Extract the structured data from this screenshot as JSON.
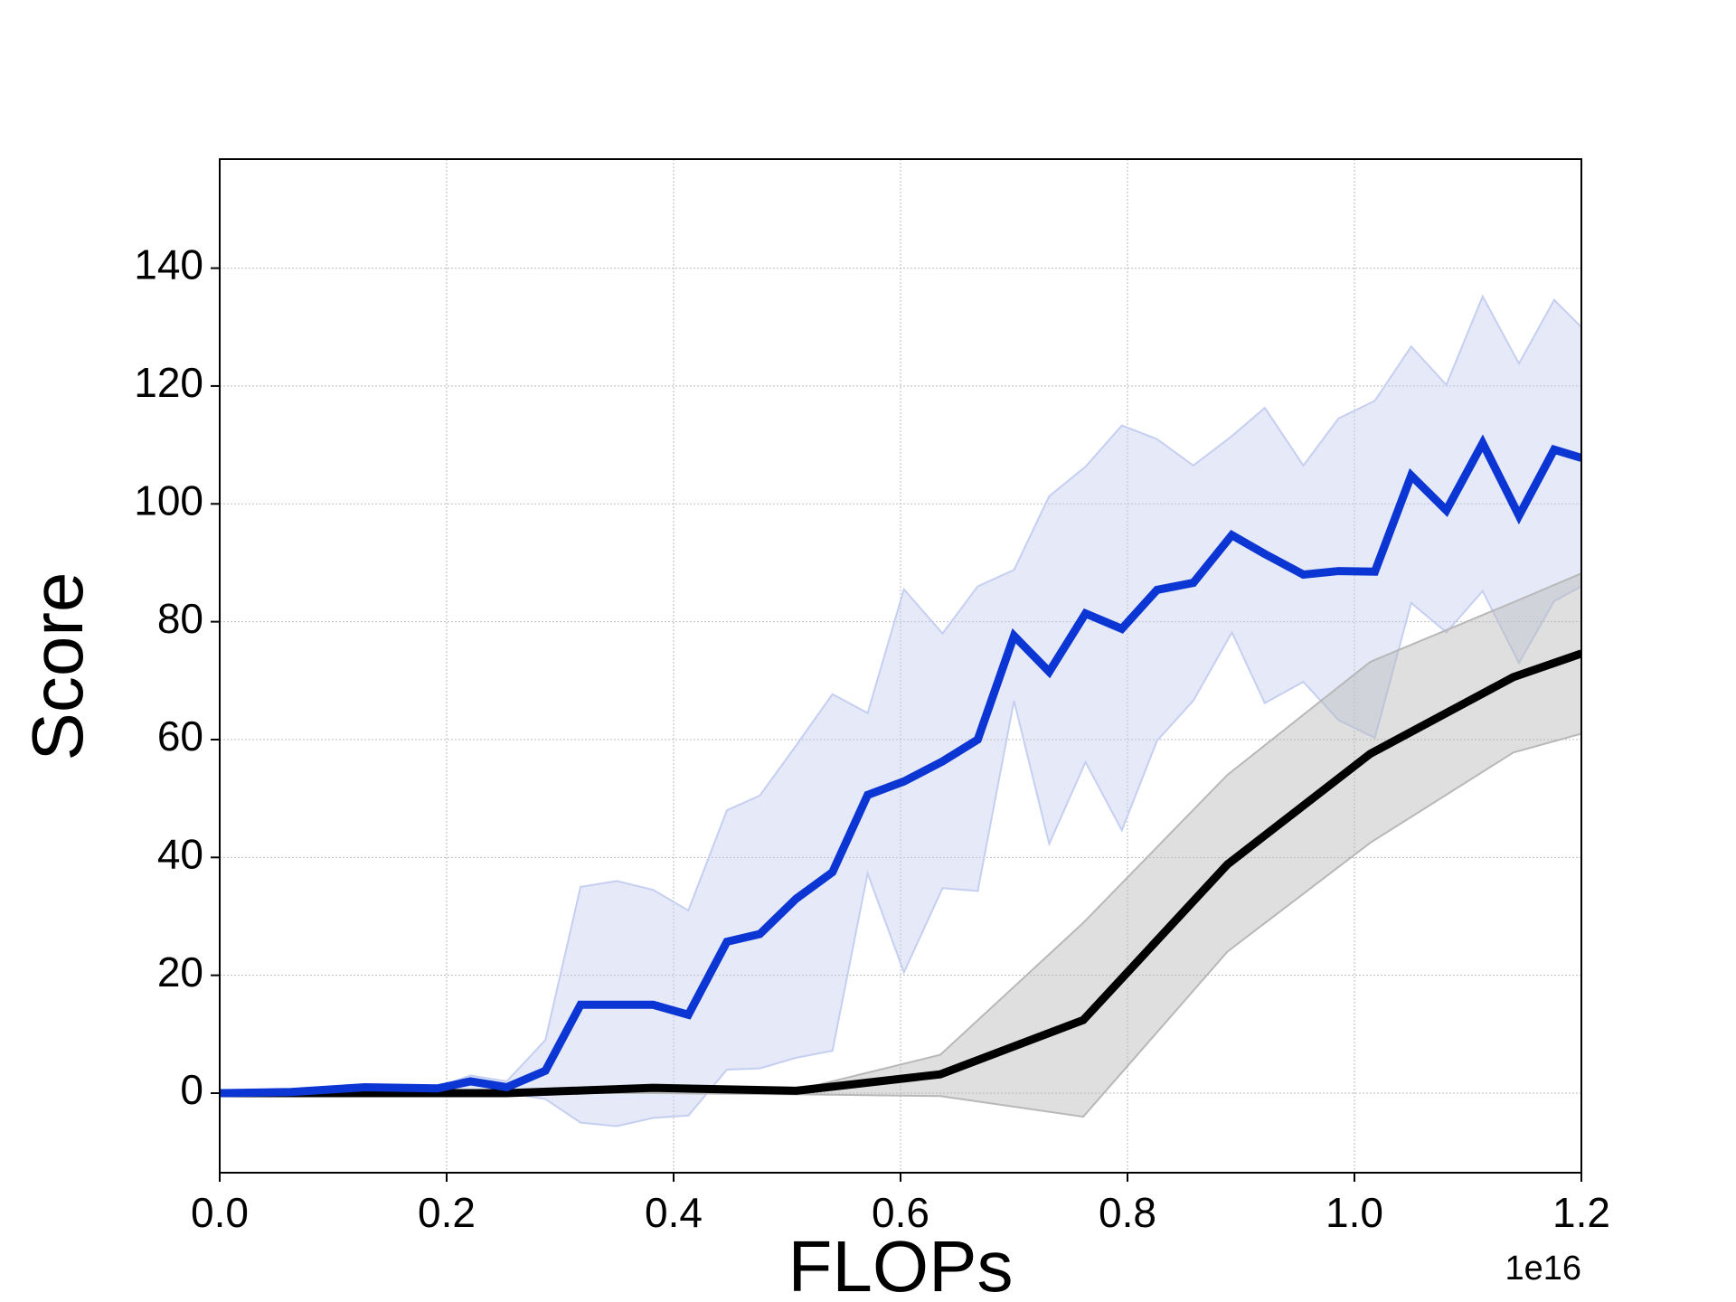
{
  "chart_data": {
    "type": "line",
    "x_label": "FLOPs",
    "y_label": "Score",
    "x_offset_label": "1e16",
    "xlim": [
      0,
      1.2
    ],
    "ylim": [
      -13.5,
      158.5
    ],
    "xticks": [
      {
        "value": 0,
        "label": "0.0"
      },
      0.2,
      0.4,
      0.6,
      0.8,
      {
        "value": 1,
        "label": "1.0"
      },
      1.2
    ],
    "yticks": [
      0,
      20,
      40,
      60,
      80,
      100,
      120,
      140
    ],
    "grid": true,
    "series": [
      {
        "color": "#0b36d4",
        "band_color": "#c5cff0",
        "x": [
          0,
          0.063,
          0.128,
          0.192,
          0.221,
          0.253,
          0.287,
          0.318,
          0.35,
          0.382,
          0.413,
          0.447,
          0.476,
          0.508,
          0.54,
          0.571,
          0.603,
          0.637,
          0.668,
          0.7,
          0.731,
          0.763,
          0.795,
          0.826,
          0.858,
          0.892,
          0.921,
          0.955,
          0.986,
          1.018,
          1.05,
          1.081,
          1.113,
          1.145,
          1.176,
          1.2
        ],
        "values": [
          0,
          0.2,
          1,
          0.8,
          2,
          1,
          3.8,
          15,
          15,
          15,
          13.3,
          25.7,
          27,
          33,
          37.5,
          50.6,
          52.9,
          56.3,
          60,
          77.6,
          71.5,
          81.4,
          78.8,
          85.4,
          86.6,
          94.7,
          91.5,
          88,
          88.6,
          88.5,
          104.8,
          98.9,
          110.3,
          98,
          109.2,
          107.8
        ],
        "upper": [
          0,
          0.5,
          1.5,
          1,
          3,
          2,
          9,
          35,
          36,
          34.5,
          31,
          48,
          50.5,
          59,
          67.7,
          64.5,
          85.5,
          78,
          86,
          88.8,
          101.3,
          106.3,
          113.3,
          111,
          106.5,
          111.5,
          116.3,
          106.5,
          114.5,
          117.5,
          126.7,
          120.2,
          135.2,
          123.8,
          134.6,
          130
        ],
        "lower": [
          -0.5,
          -0.5,
          0,
          -0.3,
          -0.5,
          0,
          -1,
          -5,
          -5.6,
          -4.2,
          -3.8,
          4,
          4.2,
          6,
          7.2,
          37.3,
          20.5,
          34.8,
          34.3,
          66.6,
          42.3,
          56.2,
          44.6,
          59.8,
          66.6,
          78.2,
          66.2,
          69.8,
          63.3,
          60.3,
          83.2,
          78.2,
          85.2,
          73,
          83.5,
          86
        ]
      },
      {
        "color": "#000000",
        "band_color": "#b8b8b8",
        "x": [
          0,
          0.253,
          0.382,
          0.508,
          0.635,
          0.761,
          0.888,
          1.014,
          1.14,
          1.2
        ],
        "values": [
          0,
          0,
          0.9,
          0.4,
          3.2,
          12.4,
          38.8,
          57.6,
          70.6,
          74.6
        ],
        "upper": [
          0,
          0,
          0.3,
          0.5,
          6.5,
          28.9,
          54,
          73.2,
          83.3,
          88.2
        ],
        "lower": [
          0,
          0,
          0,
          -0.2,
          -0.5,
          -4,
          24,
          42.5,
          57.8,
          61
        ]
      }
    ]
  }
}
